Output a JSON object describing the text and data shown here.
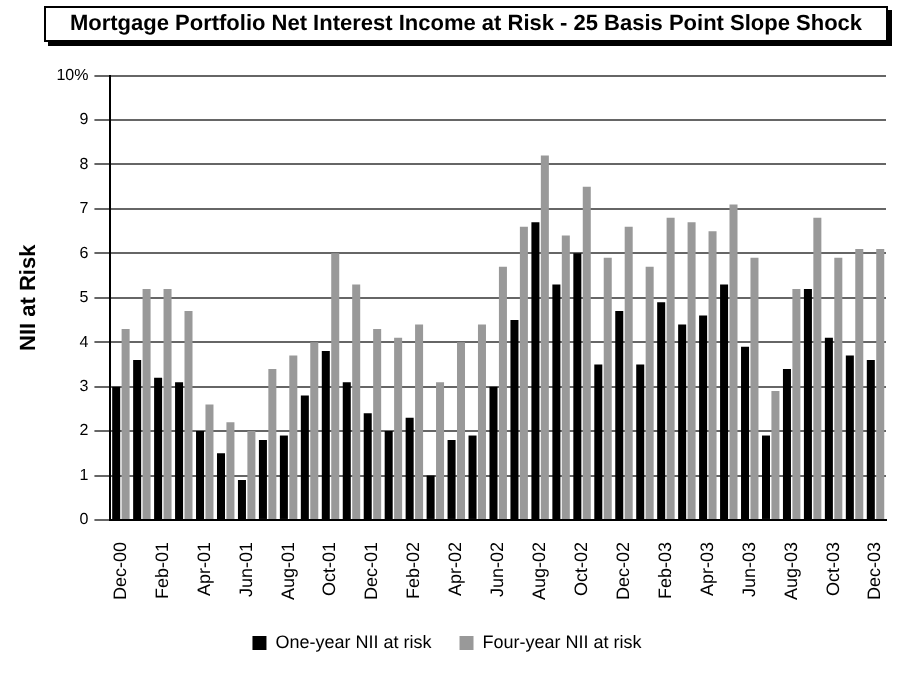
{
  "chart_data": {
    "type": "bar",
    "title": "Mortgage Portfolio Net Interest Income at Risk - 25 Basis Point Slope Shock",
    "ylabel": "NII at Risk",
    "categories": [
      "Dec-00",
      null,
      "Feb-01",
      null,
      "Apr-01",
      null,
      "Jun-01",
      null,
      "Aug-01",
      null,
      "Oct-01",
      null,
      "Dec-01",
      null,
      "Feb-02",
      null,
      "Apr-02",
      null,
      "Jun-02",
      null,
      "Aug-02",
      null,
      "Oct-02",
      null,
      "Dec-02",
      null,
      "Feb-03",
      null,
      "Apr-03",
      null,
      "Jun-03",
      null,
      "Aug-03",
      null,
      "Oct-03",
      null,
      "Dec-03"
    ],
    "series": [
      {
        "name": "One-year NII at risk",
        "color": "#000000",
        "values": [
          3.0,
          3.6,
          3.2,
          3.1,
          2.0,
          1.5,
          0.9,
          1.8,
          1.9,
          2.8,
          3.8,
          3.1,
          2.4,
          2.0,
          2.3,
          1.0,
          1.8,
          1.9,
          3.0,
          4.5,
          6.7,
          5.3,
          6.0,
          3.5,
          4.7,
          3.5,
          4.9,
          4.4,
          4.6,
          5.3,
          3.9,
          1.9,
          3.4,
          5.2,
          4.1,
          3.7,
          3.6
        ]
      },
      {
        "name": "Four-year NII at risk",
        "color": "#999999",
        "values": [
          4.3,
          5.2,
          5.2,
          4.7,
          2.6,
          2.2,
          2.0,
          3.4,
          3.7,
          4.0,
          6.0,
          5.3,
          4.3,
          4.1,
          4.4,
          3.1,
          4.0,
          4.4,
          5.7,
          6.6,
          8.2,
          6.4,
          7.5,
          5.9,
          6.6,
          5.7,
          6.8,
          6.7,
          6.5,
          7.1,
          5.9,
          2.9,
          5.2,
          6.8,
          5.9,
          6.1,
          6.1
        ]
      }
    ],
    "ylim": [
      0,
      10
    ],
    "yticks": [
      0,
      1,
      2,
      3,
      4,
      5,
      6,
      7,
      8,
      9,
      {
        "value": 10,
        "label": "10%"
      }
    ],
    "grid": "y",
    "legend": "bottom"
  }
}
